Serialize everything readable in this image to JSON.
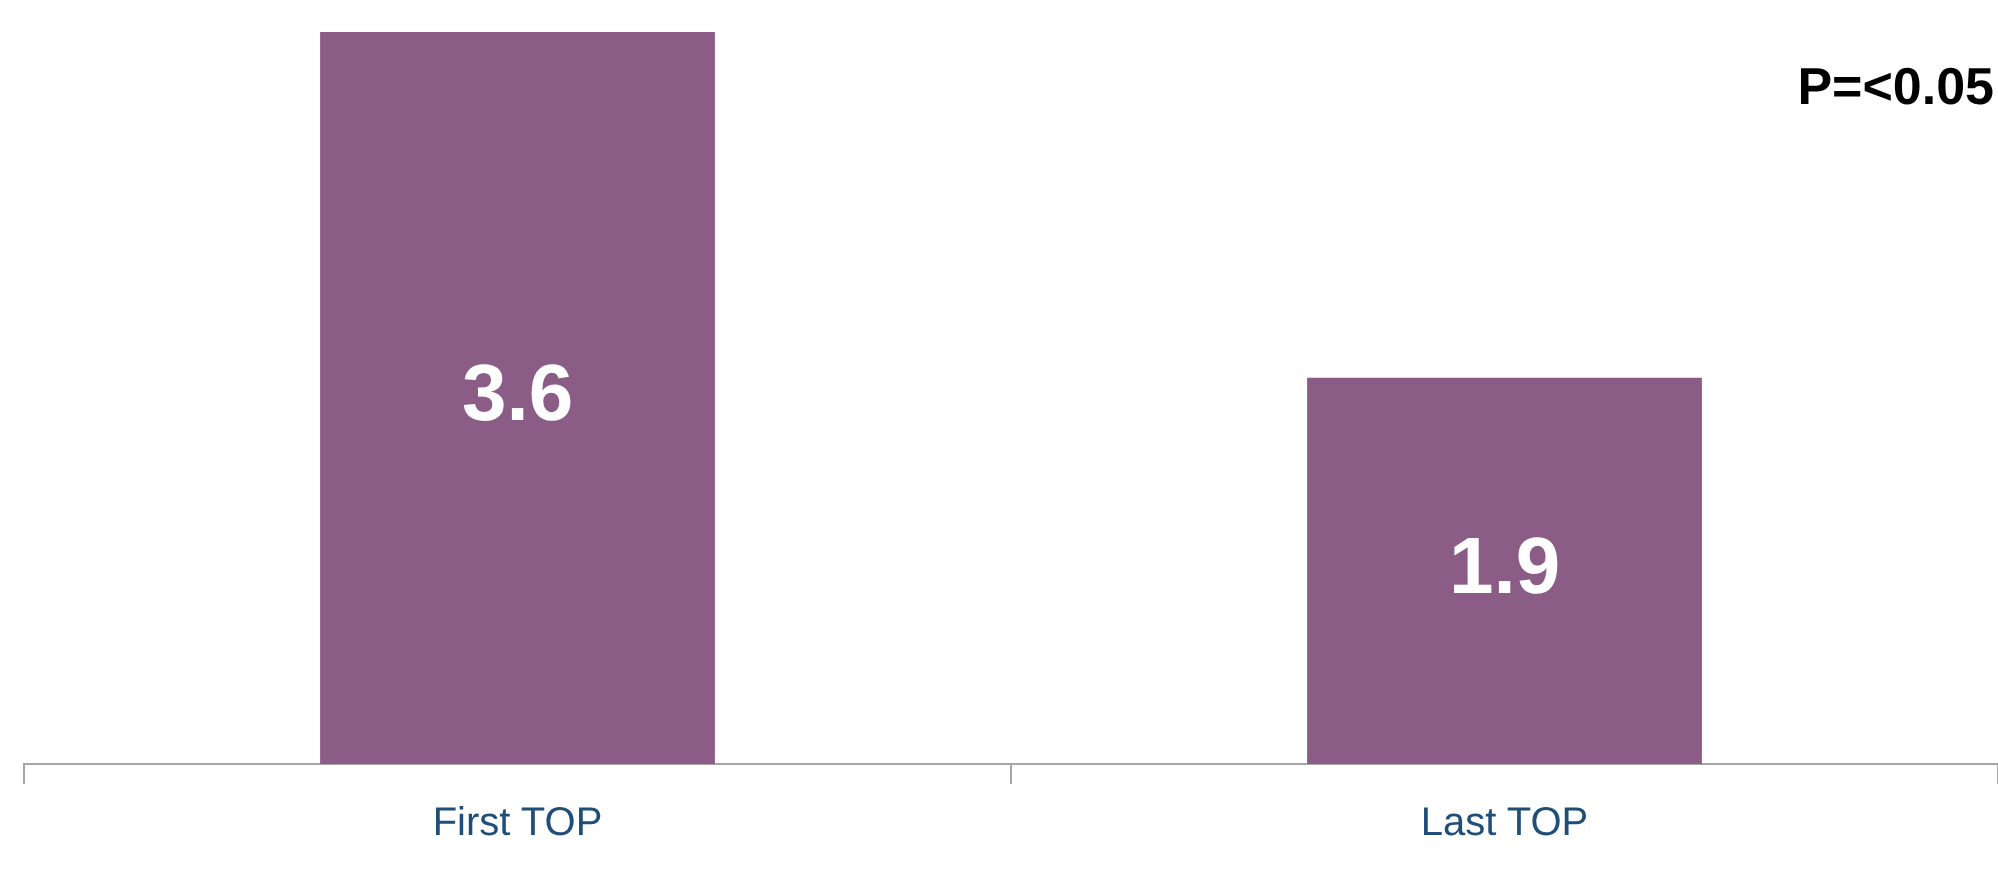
{
  "chart_data": {
    "type": "bar",
    "categories": [
      "First TOP",
      "Last TOP"
    ],
    "values": [
      3.6,
      1.9
    ],
    "color": "#8b5d86",
    "data_labels": true,
    "grid": false,
    "legend": false,
    "annotations": [
      "P=<0.05"
    ]
  }
}
